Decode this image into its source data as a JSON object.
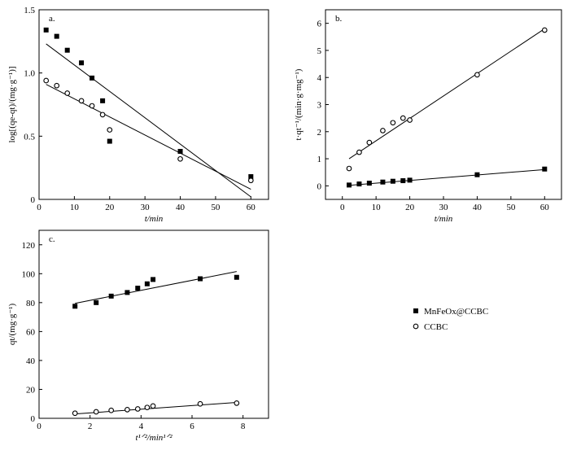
{
  "chart_data": [
    {
      "id": "a",
      "panel_label": "a.",
      "type": "scatter",
      "xlabel": "t/min",
      "ylabel": "log[(qe-qt)/(mg·g⁻¹)]",
      "xlim": [
        0,
        65
      ],
      "ylim": [
        0,
        1.5
      ],
      "xticks": [
        0,
        10,
        20,
        30,
        40,
        50,
        60
      ],
      "yticks": [
        0,
        0.5,
        1.0,
        1.5
      ],
      "ytick_labels": [
        "0",
        "0.5",
        "1.0",
        "1.5"
      ],
      "series": [
        {
          "name": "MnFeOx@CCBC",
          "marker": "square",
          "x": [
            2,
            5,
            8,
            12,
            15,
            18,
            20,
            40,
            60
          ],
          "y": [
            1.34,
            1.29,
            1.18,
            1.08,
            0.96,
            0.78,
            0.46,
            0.38,
            0.18
          ],
          "fit": [
            [
              2,
              1.23
            ],
            [
              60,
              0.02
            ]
          ]
        },
        {
          "name": "CCBC",
          "marker": "circle",
          "x": [
            2,
            5,
            8,
            12,
            15,
            18,
            20,
            40,
            60
          ],
          "y": [
            0.94,
            0.9,
            0.84,
            0.78,
            0.74,
            0.67,
            0.55,
            0.32,
            0.15
          ],
          "fit": [
            [
              2,
              0.91
            ],
            [
              60,
              0.08
            ]
          ]
        }
      ]
    },
    {
      "id": "b",
      "panel_label": "b.",
      "type": "scatter",
      "xlabel": "t/min",
      "ylabel": "t·qt⁻¹/(min·g·mg⁻¹)",
      "xlim": [
        -5,
        65
      ],
      "ylim": [
        -0.5,
        6.5
      ],
      "xticks": [
        0,
        10,
        20,
        30,
        40,
        50,
        60
      ],
      "yticks": [
        0,
        1,
        2,
        3,
        4,
        5,
        6
      ],
      "ytick_labels": [
        "0",
        "1",
        "2",
        "3",
        "4",
        "5",
        "6"
      ],
      "series": [
        {
          "name": "MnFeOx@CCBC",
          "marker": "square",
          "x": [
            2,
            5,
            8,
            12,
            15,
            18,
            20,
            40,
            60
          ],
          "y": [
            0.03,
            0.07,
            0.1,
            0.14,
            0.17,
            0.19,
            0.21,
            0.41,
            0.62
          ],
          "fit": [
            [
              2,
              0.02
            ],
            [
              60,
              0.6
            ]
          ]
        },
        {
          "name": "CCBC",
          "marker": "circle",
          "x": [
            2,
            5,
            8,
            12,
            15,
            18,
            20,
            40,
            60
          ],
          "y": [
            0.64,
            1.24,
            1.6,
            2.04,
            2.33,
            2.5,
            2.43,
            4.1,
            5.75
          ],
          "fit": [
            [
              2,
              1.0
            ],
            [
              60,
              5.8
            ]
          ]
        }
      ]
    },
    {
      "id": "c",
      "panel_label": "c.",
      "type": "scatter",
      "xlabel": "t¹ᐟ²/min¹ᐟ²",
      "ylabel": "qt/(mg·g⁻¹)",
      "xlim": [
        0,
        9
      ],
      "ylim": [
        0,
        130
      ],
      "xticks": [
        0,
        2,
        4,
        6,
        8
      ],
      "yticks": [
        0,
        20,
        40,
        60,
        80,
        100,
        120
      ],
      "ytick_labels": [
        "0",
        "20",
        "40",
        "60",
        "80",
        "100",
        "120"
      ],
      "series": [
        {
          "name": "MnFeOx@CCBC",
          "marker": "square",
          "x": [
            1.41,
            2.24,
            2.83,
            3.46,
            3.87,
            4.24,
            4.47,
            6.32,
            7.75
          ],
          "y": [
            77.5,
            80,
            84.5,
            87,
            90,
            93,
            96,
            96.5,
            97.5
          ],
          "fit": [
            [
              1.41,
              79.5
            ],
            [
              7.75,
              101.5
            ]
          ]
        },
        {
          "name": "CCBC",
          "marker": "circle",
          "x": [
            1.41,
            2.24,
            2.83,
            3.46,
            3.87,
            4.24,
            4.47,
            6.32,
            7.75
          ],
          "y": [
            3.5,
            4.5,
            5.5,
            6,
            6.5,
            7.5,
            8.5,
            10,
            10.5
          ],
          "fit": [
            [
              1.41,
              3
            ],
            [
              7.75,
              11
            ]
          ]
        }
      ]
    }
  ],
  "legend": [
    {
      "marker": "square",
      "label": "MnFeOx@CCBC"
    },
    {
      "marker": "circle",
      "label": "CCBC"
    }
  ]
}
